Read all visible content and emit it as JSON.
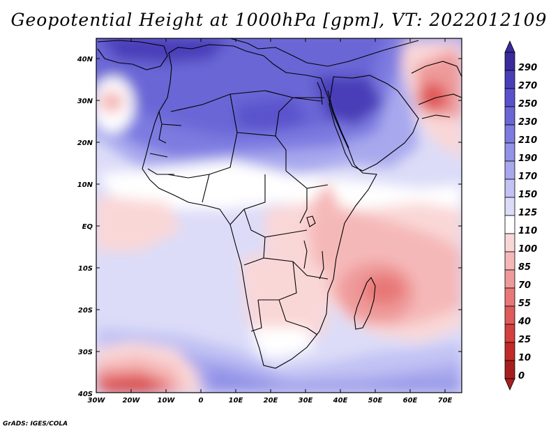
{
  "title": "Geopotential Height at 1000hPa [gpm], VT: 2022012109",
  "credit": "GrADS: IGES/COLA",
  "map": {
    "variable": "Geopotential Height",
    "level": "1000hPa",
    "units": "gpm",
    "valid_time": "2022012109",
    "lon_labels": [
      "30W",
      "20W",
      "10W",
      "0",
      "10E",
      "20E",
      "30E",
      "40E",
      "50E",
      "60E",
      "70E"
    ],
    "lat_labels": [
      "40N",
      "30N",
      "20N",
      "10N",
      "EQ",
      "10S",
      "20S",
      "30S",
      "40S"
    ]
  },
  "colorbar": {
    "labels": [
      "290",
      "270",
      "250",
      "230",
      "210",
      "190",
      "170",
      "150",
      "125",
      "110",
      "100",
      "85",
      "70",
      "55",
      "40",
      "25",
      "10",
      "0"
    ],
    "colors": [
      "#3a2a9c",
      "#4a3eb8",
      "#5a52cc",
      "#6b66d6",
      "#7d7ae0",
      "#9292e6",
      "#a8a8ee",
      "#c2c2f4",
      "#dcdcf8",
      "#ffffff",
      "#fad7d7",
      "#f5b8b8",
      "#ef9a9a",
      "#e87878",
      "#e05a5a",
      "#d43f3f",
      "#c22a2a",
      "#a81e1e"
    ]
  }
}
